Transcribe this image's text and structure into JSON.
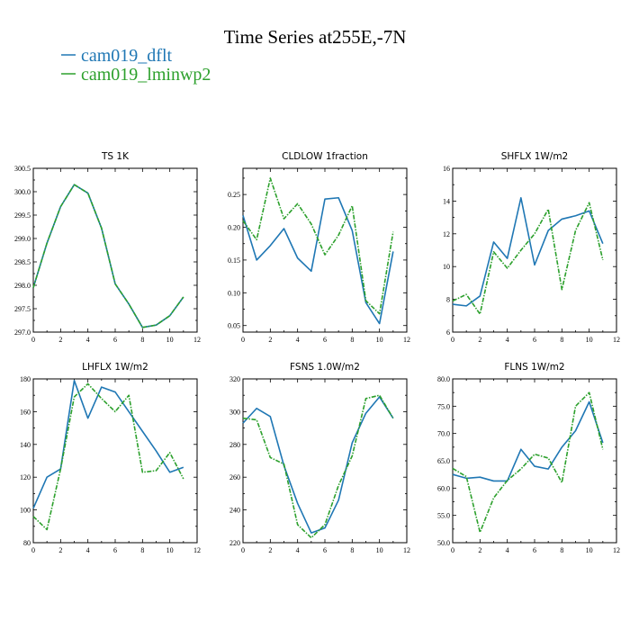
{
  "title": "Time Series at255E,-7N",
  "colors": {
    "dflt": "#1f77b4",
    "lminwp2": "#2ca02c",
    "frame": "#000000"
  },
  "legend": [
    {
      "key": "dflt",
      "label": "cam019_dflt"
    },
    {
      "key": "lminwp2",
      "label": "cam019_lminwp2"
    }
  ],
  "chart_data": [
    {
      "type": "line",
      "title": "TS   1K",
      "x": [
        0,
        1,
        2,
        3,
        4,
        5,
        6,
        7,
        8,
        9,
        10,
        11
      ],
      "xlim": [
        0,
        12
      ],
      "xticks": [
        0,
        2,
        4,
        6,
        8,
        10,
        12
      ],
      "xtick_labels": [
        "0",
        "2",
        "4",
        "6",
        "8",
        "10",
        "12"
      ],
      "ylim": [
        297.0,
        300.5
      ],
      "yticks": [
        297.0,
        297.5,
        298.0,
        298.5,
        299.0,
        299.5,
        300.0,
        300.5
      ],
      "ytick_labels": [
        "297.0",
        "297.5",
        "298.0",
        "298.5",
        "299.0",
        "299.5",
        "300.0",
        "300.5"
      ],
      "series": [
        {
          "name": "cam019_dflt",
          "key": "dflt",
          "values": [
            297.95,
            298.9,
            299.68,
            300.15,
            299.97,
            299.22,
            298.03,
            297.6,
            297.1,
            297.15,
            297.35,
            297.75
          ]
        },
        {
          "name": "cam019_lminwp2",
          "key": "lminwp2",
          "values": [
            297.95,
            298.9,
            299.68,
            300.15,
            299.97,
            299.22,
            298.03,
            297.6,
            297.1,
            297.15,
            297.35,
            297.75
          ]
        }
      ]
    },
    {
      "type": "line",
      "title": "CLDLOW   1fraction",
      "x": [
        0,
        1,
        2,
        3,
        4,
        5,
        6,
        7,
        8,
        9,
        10,
        11
      ],
      "xlim": [
        0,
        12
      ],
      "xticks": [
        0,
        2,
        4,
        6,
        8,
        10,
        12
      ],
      "xtick_labels": [
        "0",
        "2",
        "4",
        "6",
        "8",
        "10",
        "12"
      ],
      "ylim": [
        0.04,
        0.29
      ],
      "yticks": [
        0.05,
        0.1,
        0.15,
        0.2,
        0.25
      ],
      "ytick_labels": [
        "0.05",
        "0.10",
        "0.15",
        "0.20",
        "0.25"
      ],
      "series": [
        {
          "name": "cam019_dflt",
          "key": "dflt",
          "values": [
            0.218,
            0.15,
            0.172,
            0.198,
            0.153,
            0.133,
            0.243,
            0.245,
            0.195,
            0.085,
            0.053,
            0.163
          ]
        },
        {
          "name": "cam019_lminwp2",
          "key": "lminwp2",
          "values": [
            0.21,
            0.181,
            0.275,
            0.213,
            0.236,
            0.205,
            0.158,
            0.188,
            0.233,
            0.088,
            0.068,
            0.193
          ]
        }
      ]
    },
    {
      "type": "line",
      "title": "SHFLX   1W/m2",
      "x": [
        0,
        1,
        2,
        3,
        4,
        5,
        6,
        7,
        8,
        9,
        10,
        11
      ],
      "xlim": [
        0,
        12
      ],
      "xticks": [
        0,
        2,
        4,
        6,
        8,
        10,
        12
      ],
      "xtick_labels": [
        "0",
        "2",
        "4",
        "6",
        "8",
        "10",
        "12"
      ],
      "ylim": [
        6,
        16
      ],
      "yticks": [
        6,
        8,
        10,
        12,
        14,
        16
      ],
      "ytick_labels": [
        "6",
        "8",
        "10",
        "12",
        "14",
        "16"
      ],
      "series": [
        {
          "name": "cam019_dflt",
          "key": "dflt",
          "values": [
            7.7,
            7.6,
            8.2,
            11.5,
            10.5,
            14.2,
            10.1,
            12.2,
            12.9,
            13.1,
            13.4,
            11.4
          ]
        },
        {
          "name": "cam019_lminwp2",
          "key": "lminwp2",
          "values": [
            7.9,
            8.3,
            7.1,
            10.9,
            9.9,
            11.0,
            12.0,
            13.5,
            8.6,
            12.2,
            13.9,
            10.4
          ]
        }
      ]
    },
    {
      "type": "line",
      "title": "LHFLX   1W/m2",
      "x": [
        0,
        1,
        2,
        3,
        4,
        5,
        6,
        7,
        8,
        9,
        10,
        11
      ],
      "xlim": [
        0,
        12
      ],
      "xticks": [
        0,
        2,
        4,
        6,
        8,
        10,
        12
      ],
      "xtick_labels": [
        "0",
        "2",
        "4",
        "6",
        "8",
        "10",
        "12"
      ],
      "ylim": [
        80,
        180
      ],
      "yticks": [
        80,
        100,
        120,
        140,
        160,
        180
      ],
      "ytick_labels": [
        "80",
        "100",
        "120",
        "140",
        "160",
        "180"
      ],
      "series": [
        {
          "name": "cam019_dflt",
          "key": "dflt",
          "values": [
            101,
            120,
            125,
            179,
            156,
            175,
            172,
            160,
            148,
            136,
            123,
            126
          ]
        },
        {
          "name": "cam019_lminwp2",
          "key": "lminwp2",
          "values": [
            96,
            88,
            125,
            169,
            177,
            168,
            160,
            170,
            123,
            124,
            135,
            119
          ]
        }
      ]
    },
    {
      "type": "line",
      "title": "FSNS   1.0W/m2",
      "x": [
        0,
        1,
        2,
        3,
        4,
        5,
        6,
        7,
        8,
        9,
        10,
        11
      ],
      "xlim": [
        0,
        12
      ],
      "xticks": [
        0,
        2,
        4,
        6,
        8,
        10,
        12
      ],
      "xtick_labels": [
        "0",
        "2",
        "4",
        "6",
        "8",
        "10",
        "12"
      ],
      "ylim": [
        220,
        320
      ],
      "yticks": [
        220,
        240,
        260,
        280,
        300,
        320
      ],
      "ytick_labels": [
        "220",
        "240",
        "260",
        "280",
        "300",
        "320"
      ],
      "series": [
        {
          "name": "cam019_dflt",
          "key": "dflt",
          "values": [
            293,
            302,
            297,
            267,
            244,
            226,
            229,
            246,
            281,
            299,
            309,
            296
          ]
        },
        {
          "name": "cam019_lminwp2",
          "key": "lminwp2",
          "values": [
            296,
            295,
            272,
            268,
            231,
            223,
            231,
            255,
            273,
            308,
            310,
            296
          ]
        }
      ]
    },
    {
      "type": "line",
      "title": "FLNS   1W/m2",
      "x": [
        0,
        1,
        2,
        3,
        4,
        5,
        6,
        7,
        8,
        9,
        10,
        11
      ],
      "xlim": [
        0,
        12
      ],
      "xticks": [
        0,
        2,
        4,
        6,
        8,
        10,
        12
      ],
      "xtick_labels": [
        "0",
        "2",
        "4",
        "6",
        "8",
        "10",
        "12"
      ],
      "ylim": [
        50,
        80
      ],
      "yticks": [
        50,
        55,
        60,
        65,
        70,
        75,
        80
      ],
      "ytick_labels": [
        "50.0",
        "55.0",
        "60.0",
        "65.0",
        "70.0",
        "75.0",
        "80.0"
      ],
      "series": [
        {
          "name": "cam019_dflt",
          "key": "dflt",
          "values": [
            62.5,
            61.8,
            62.0,
            61.3,
            61.3,
            67.1,
            64.0,
            63.5,
            67.5,
            70.5,
            75.8,
            68.3
          ]
        },
        {
          "name": "cam019_lminwp2",
          "key": "lminwp2",
          "values": [
            63.6,
            62.1,
            51.9,
            58.2,
            61.4,
            63.5,
            66.2,
            65.5,
            61.0,
            75.0,
            77.5,
            67.1
          ]
        }
      ]
    }
  ]
}
